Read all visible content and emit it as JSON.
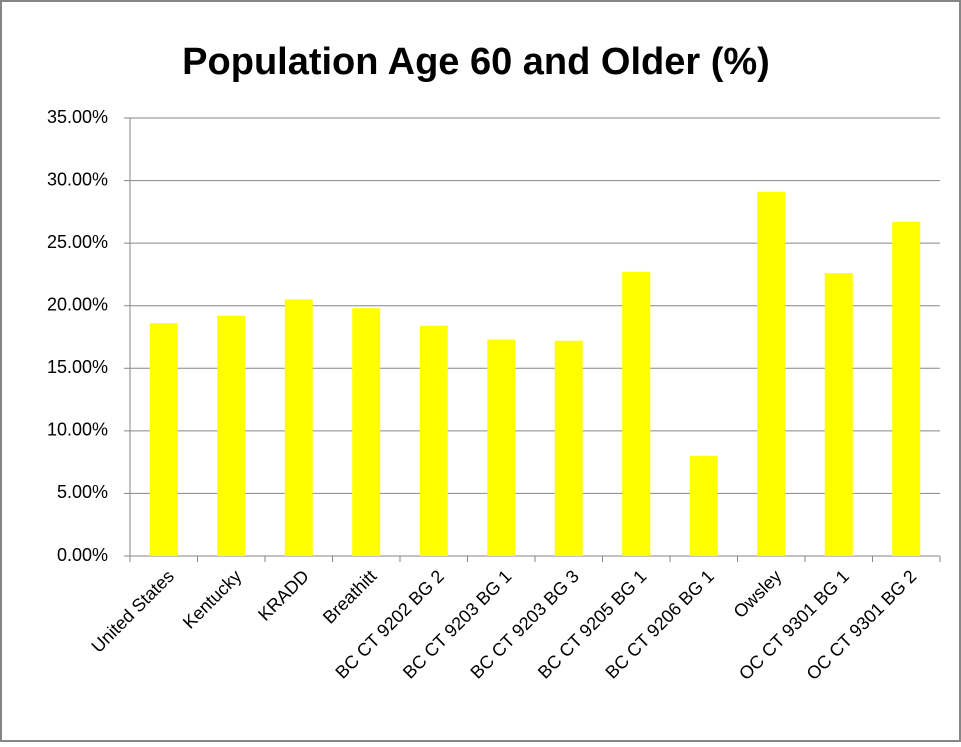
{
  "chart_data": {
    "type": "bar",
    "title": "Population Age 60 and Older (%)",
    "categories": [
      "United States",
      "Kentucky",
      "KRADD",
      "Breathitt",
      "BC CT 9202 BG 2",
      "BC CT 9203 BG 1",
      "BC CT 9203 BG 3",
      "BC CT 9205 BG 1",
      "BC CT 9206 BG 1",
      "Owsley",
      "OC CT 9301 BG 1",
      "OC CT 9301 BG 2"
    ],
    "values": [
      18.6,
      19.2,
      20.5,
      19.8,
      18.4,
      17.3,
      17.2,
      22.7,
      8.0,
      29.1,
      22.6,
      26.7
    ],
    "color": "#ffff00",
    "ylim": [
      0,
      35
    ],
    "yticks": [
      {
        "value": 0,
        "label": "0.00%"
      },
      {
        "value": 5,
        "label": "5.00%"
      },
      {
        "value": 10,
        "label": "10.00%"
      },
      {
        "value": 15,
        "label": "15.00%"
      },
      {
        "value": 20,
        "label": "20.00%"
      },
      {
        "value": 25,
        "label": "25.00%"
      },
      {
        "value": 30,
        "label": "30.00%"
      },
      {
        "value": 35,
        "label": "35.00%"
      }
    ],
    "grid": true
  }
}
